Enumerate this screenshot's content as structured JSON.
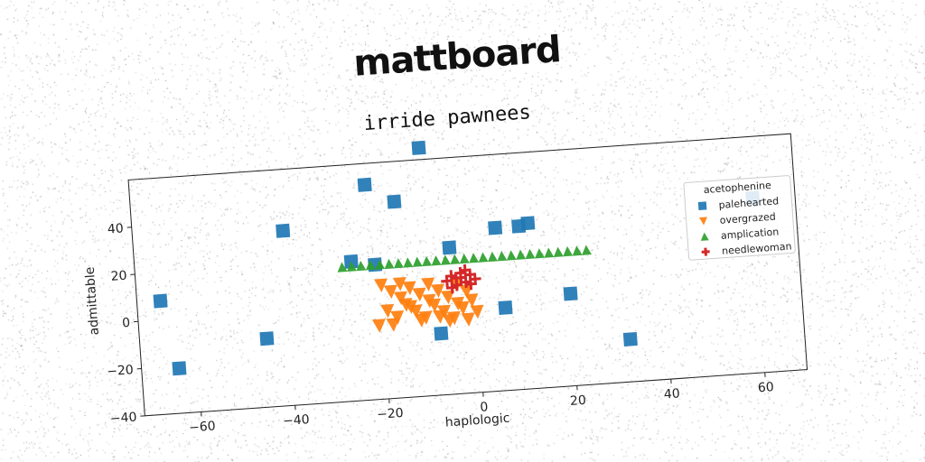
{
  "header": {
    "logo_text": "mattboard"
  },
  "chart_data": {
    "type": "scatter",
    "title": "irride pawnees",
    "xlabel": "haplologic",
    "ylabel": "admittable",
    "xlim": [
      -72,
      69
    ],
    "ylim": [
      -40,
      60
    ],
    "xticks": [
      -60,
      -40,
      -20,
      0,
      20,
      40,
      60
    ],
    "yticks": [
      -40,
      -20,
      0,
      20,
      40
    ],
    "grid": false,
    "legend": {
      "title": "acetophenine",
      "placement": "right"
    },
    "series": [
      {
        "name": "palehearted",
        "marker": "square",
        "color": "#1f77b4",
        "points": [
          [
            -67,
            8
          ],
          [
            -64,
            -21
          ],
          [
            -45,
            -11
          ],
          [
            -40,
            34
          ],
          [
            -26,
            19
          ],
          [
            -22,
            51
          ],
          [
            -21,
            17
          ],
          [
            -16,
            43
          ],
          [
            -10,
            65
          ],
          [
            -5,
            22
          ],
          [
            -8,
            -14
          ],
          [
            5,
            29
          ],
          [
            6,
            -5
          ],
          [
            10,
            29
          ],
          [
            12,
            30
          ],
          [
            20,
            -1
          ],
          [
            32,
            -22
          ],
          [
            60,
            34
          ]
        ]
      },
      {
        "name": "overgrazed",
        "marker": "triangle-down",
        "color": "#ff7f0e",
        "points": [
          [
            -20,
            8
          ],
          [
            -18,
            5
          ],
          [
            -16,
            2
          ],
          [
            -14,
            6
          ],
          [
            -12,
            3
          ],
          [
            -10,
            0
          ],
          [
            -8,
            4
          ],
          [
            -6,
            1
          ],
          [
            -4,
            -2
          ],
          [
            -2,
            3
          ],
          [
            -19,
            -3
          ],
          [
            -17,
            -6
          ],
          [
            -15,
            -1
          ],
          [
            -13,
            -4
          ],
          [
            -11,
            -7
          ],
          [
            -9,
            -2
          ],
          [
            -7,
            -5
          ],
          [
            -5,
            -8
          ],
          [
            -3,
            -4
          ],
          [
            -1,
            -1
          ],
          [
            -21,
            -9
          ],
          [
            -18,
            -9
          ],
          [
            -12,
            -8
          ],
          [
            -6,
            -9
          ],
          [
            0,
            -6
          ],
          [
            -16,
            8
          ],
          [
            -10,
            7
          ],
          [
            -4,
            6
          ],
          [
            -14,
            -2
          ],
          [
            -8,
            -7
          ],
          [
            -2,
            -9
          ]
        ]
      },
      {
        "name": "amplication",
        "marker": "triangle-up",
        "color": "#2ca02c",
        "points": [
          [
            -28,
            17
          ],
          [
            -26,
            17
          ],
          [
            -24,
            17
          ],
          [
            -22,
            17
          ],
          [
            -20,
            17
          ],
          [
            -18,
            17
          ],
          [
            -16,
            17
          ],
          [
            -14,
            17
          ],
          [
            -12,
            17
          ],
          [
            -10,
            17
          ],
          [
            -8,
            17
          ],
          [
            -6,
            17
          ],
          [
            -4,
            17
          ],
          [
            -2,
            17
          ],
          [
            0,
            17
          ],
          [
            2,
            17
          ],
          [
            4,
            17
          ],
          [
            6,
            17
          ],
          [
            8,
            17
          ],
          [
            10,
            17
          ],
          [
            12,
            17
          ],
          [
            14,
            17
          ],
          [
            16,
            17
          ],
          [
            18,
            17
          ],
          [
            20,
            17
          ],
          [
            22,
            17
          ],
          [
            24,
            17
          ]
        ]
      },
      {
        "name": "needlewoman",
        "marker": "plus",
        "color": "#d62728",
        "points": [
          [
            -6,
            8
          ],
          [
            -5,
            10
          ],
          [
            -4,
            6
          ],
          [
            -3,
            9
          ],
          [
            -2,
            7
          ],
          [
            -1,
            10
          ],
          [
            0,
            8
          ],
          [
            -5,
            5
          ],
          [
            -3,
            11
          ],
          [
            -1,
            6
          ],
          [
            -4,
            9
          ],
          [
            -2,
            12
          ]
        ]
      }
    ]
  }
}
